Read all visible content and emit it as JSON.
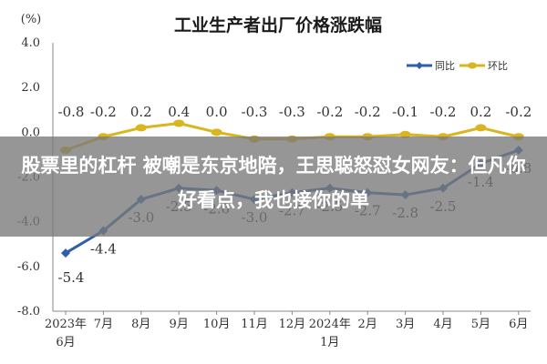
{
  "chart_data": {
    "type": "line",
    "title": "工业生产者出厂价格涨跌幅",
    "ylabel": "(%)",
    "xlabel": "",
    "ylim": [
      -8.0,
      4.0
    ],
    "y_ticks": [
      "4.0",
      "2.0",
      "0.0",
      "-2.0",
      "-4.0",
      "-6.0",
      "-8.0"
    ],
    "grid": false,
    "legend_position": "top-right",
    "categories": [
      "2023年\n6月",
      "7月",
      "8月",
      "9月",
      "10月",
      "11月",
      "12月",
      "2024年\n1月",
      "2月",
      "3月",
      "4月",
      "5月",
      "6月"
    ],
    "series": [
      {
        "name": "同比",
        "color": "#2e5fa8",
        "values": [
          -5.4,
          -4.4,
          -3.0,
          -2.5,
          -2.6,
          -3.0,
          -2.7,
          -2.5,
          -2.7,
          -2.8,
          -2.5,
          -1.4,
          -0.8
        ],
        "labels": [
          "-5.4",
          "-4.4",
          "-3.0",
          "-2.5",
          "-2.6",
          "-3.0",
          "-2.7",
          "-2.5",
          "-2.7",
          "-2.8",
          "-2.5",
          "-1.4",
          "-0.8"
        ]
      },
      {
        "name": "环比",
        "color": "#d9b520",
        "values": [
          -0.8,
          -0.2,
          0.2,
          0.4,
          0.0,
          -0.3,
          -0.3,
          -0.2,
          -0.2,
          -0.1,
          -0.2,
          0.2,
          -0.2
        ],
        "labels": [
          "-0.8",
          "-0.2",
          "0.2",
          "0.4",
          "0.0",
          "-0.3",
          "-0.3",
          "-0.2",
          "-0.2",
          "-0.1",
          "-0.2",
          "0.2",
          "-0.2"
        ]
      }
    ]
  },
  "overlay": {
    "headline": "股票里的杠杆 被嘲是东京地陪，王思聪怒怼女网友：但凡你好看点，我也接你的单"
  }
}
